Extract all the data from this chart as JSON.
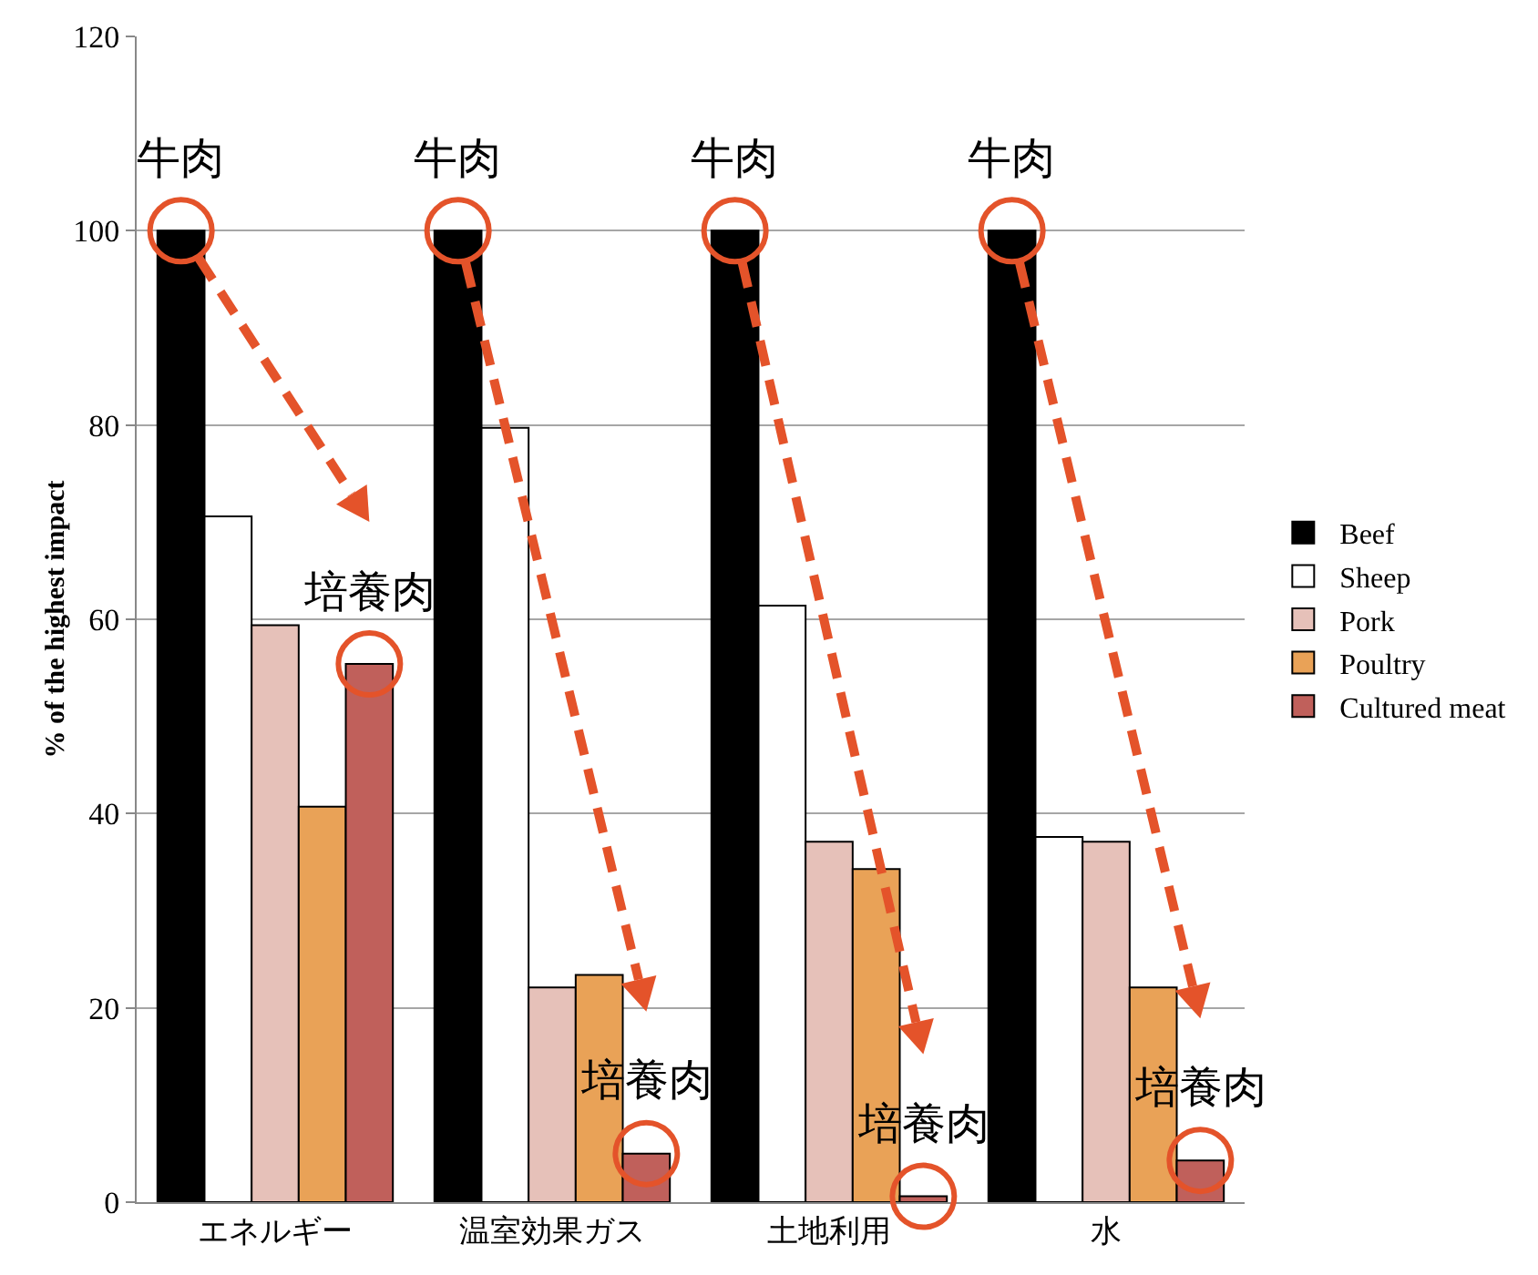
{
  "chart_data": {
    "type": "bar",
    "ylabel": "% of the highest impact",
    "categories": [
      "エネルギー",
      "温室効果ガス",
      "土地利用",
      "水"
    ],
    "series": [
      {
        "name": "Beef",
        "color": "#000000",
        "values": [
          100,
          100,
          100,
          100
        ]
      },
      {
        "name": "Sheep",
        "color": "#ffffff",
        "values": [
          70.6,
          79.7,
          61.4,
          37.6
        ]
      },
      {
        "name": "Pork",
        "color": "#e6c1b9",
        "values": [
          59.4,
          22.1,
          37.1,
          37.1
        ]
      },
      {
        "name": "Poultry",
        "color": "#e9a257",
        "values": [
          40.7,
          23.4,
          34.3,
          22.1
        ]
      },
      {
        "name": "Cultured meat",
        "color": "#c0605b",
        "values": [
          55.4,
          5,
          0.6,
          4.3
        ]
      }
    ],
    "ylim": [
      0,
      120
    ],
    "yticks": [
      0,
      20,
      40,
      60,
      80,
      100,
      120
    ],
    "grid": "y",
    "legend": "right",
    "annotations": [
      "牛肉",
      "牛肉",
      "牛肉",
      "牛肉",
      "培養肉",
      "培養肉",
      "培養肉",
      "培養肉"
    ]
  }
}
